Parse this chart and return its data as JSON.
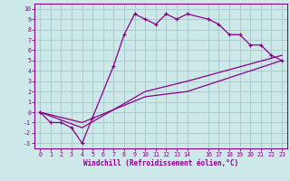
{
  "xlabel": "Windchill (Refroidissement éolien,°C)",
  "bg_color": "#cde8e8",
  "grid_color": "#aacccc",
  "line_color": "#880088",
  "tick_color": "#880088",
  "spine_color": "#880088",
  "line1_x": [
    0,
    1,
    2,
    3,
    4,
    5,
    7,
    8,
    9,
    10,
    11,
    12,
    13,
    14,
    16,
    17,
    18,
    19,
    20,
    21,
    22,
    23
  ],
  "line1_y": [
    0,
    -1,
    -1,
    -1.5,
    -3,
    -0.5,
    4.5,
    7.5,
    9.5,
    9,
    8.5,
    9.5,
    9,
    9.5,
    9,
    8.5,
    7.5,
    7.5,
    6.5,
    6.5,
    5.5,
    5
  ],
  "line2_x": [
    0,
    4,
    10,
    14,
    23
  ],
  "line2_y": [
    0,
    -1,
    1.5,
    2,
    5
  ],
  "line3_x": [
    0,
    4,
    10,
    14,
    23
  ],
  "line3_y": [
    0,
    -1.5,
    2,
    3,
    5.5
  ],
  "xlim": [
    -0.5,
    23.5
  ],
  "ylim": [
    -3.5,
    10.5
  ],
  "xticks": [
    0,
    1,
    2,
    3,
    4,
    5,
    6,
    7,
    8,
    9,
    10,
    11,
    12,
    13,
    14,
    16,
    17,
    18,
    19,
    20,
    21,
    22,
    23
  ],
  "yticks": [
    -3,
    -2,
    -1,
    0,
    1,
    2,
    3,
    4,
    5,
    6,
    7,
    8,
    9,
    10
  ],
  "marker": "+"
}
